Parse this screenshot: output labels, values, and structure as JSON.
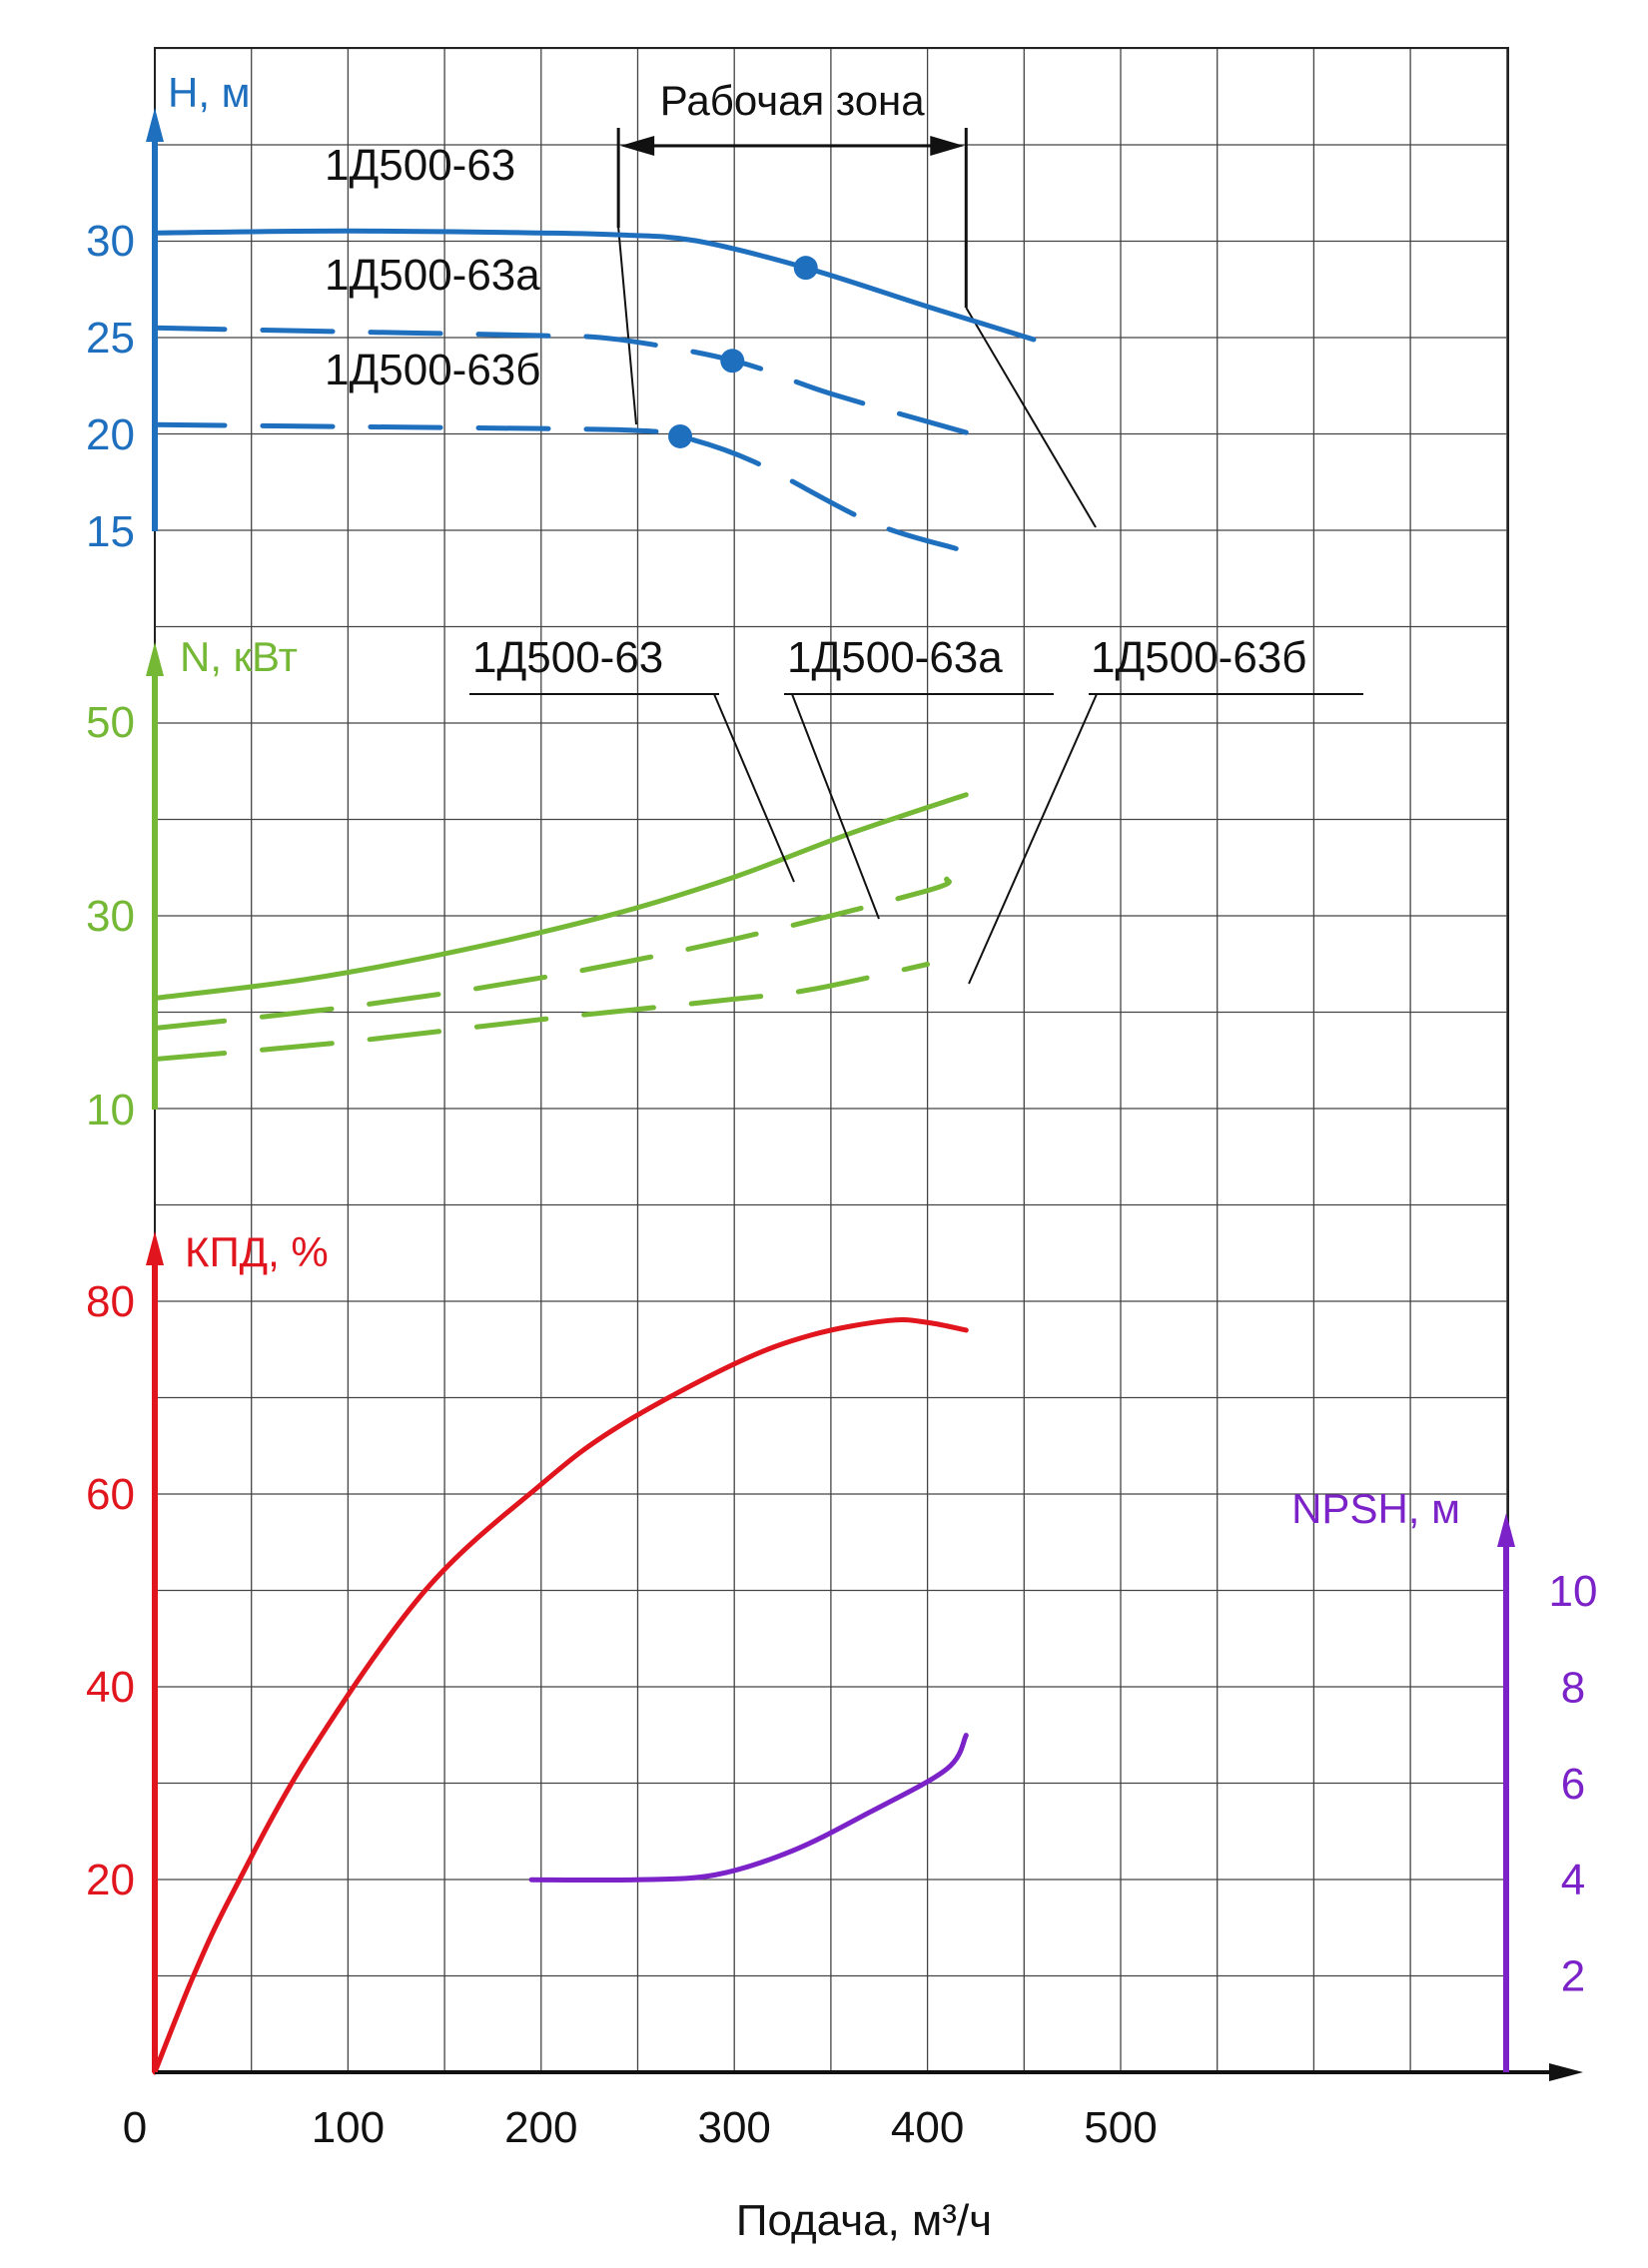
{
  "chart_data": {
    "type": "line",
    "xlabel": "Подача, м³/ч",
    "xlim": [
      0,
      560
    ],
    "xticks": [
      "0",
      "100",
      "200",
      "300",
      "400",
      "500"
    ],
    "work_zone": {
      "label": "Рабочая зона",
      "x_range": [
        240,
        420
      ]
    },
    "panels": [
      {
        "id": "head",
        "ylabel": "H, м",
        "color": "#1f6fbf",
        "ylim": [
          15,
          35
        ],
        "yticks": [
          "15",
          "20",
          "25",
          "30"
        ],
        "series": [
          {
            "name": "1Д500-63",
            "style": "solid",
            "points": [
              [
                0,
                30.4
              ],
              [
                100,
                30.5
              ],
              [
                200,
                30.4
              ],
              [
                240,
                30.3
              ],
              [
                280,
                30
              ],
              [
                337,
                28.6
              ],
              [
                400,
                26.6
              ],
              [
                455,
                24.9
              ]
            ],
            "duty_point": [
              337,
              28.6
            ]
          },
          {
            "name": "1Д500-63а",
            "style": "dashed",
            "points": [
              [
                0,
                25.5
              ],
              [
                100,
                25.3
              ],
              [
                200,
                25.1
              ],
              [
                240,
                24.9
              ],
              [
                300,
                23.8
              ],
              [
                350,
                22.1
              ],
              [
                420,
                20.1
              ]
            ],
            "duty_point": [
              299,
              23.8
            ]
          },
          {
            "name": "1Д500-63б",
            "style": "dashed",
            "points": [
              [
                0,
                20.5
              ],
              [
                100,
                20.4
              ],
              [
                200,
                20.3
              ],
              [
                250,
                20.2
              ],
              [
                272,
                19.9
              ],
              [
                310,
                18.6
              ],
              [
                370,
                15.5
              ],
              [
                415,
                14.1
              ]
            ],
            "duty_point": [
              272,
              19.9
            ]
          }
        ],
        "labels": [
          {
            "text": "1Д500-63",
            "series": 0
          },
          {
            "text": "1Д500-63а",
            "series": 1
          },
          {
            "text": "1Д500-63б",
            "series": 2
          }
        ]
      },
      {
        "id": "power",
        "ylabel": "N, кВт",
        "color": "#74b836",
        "ylim": [
          10,
          55
        ],
        "yticks": [
          "10",
          "30",
          "50"
        ],
        "series": [
          {
            "name": "1Д500-63",
            "style": "solid",
            "points": [
              [
                0,
                21.5
              ],
              [
                80,
                23.5
              ],
              [
                160,
                26.5
              ],
              [
                240,
                30.3
              ],
              [
                300,
                34
              ],
              [
                360,
                38.5
              ],
              [
                420,
                42.5
              ]
            ]
          },
          {
            "name": "1Д500-63а",
            "style": "dashed",
            "points": [
              [
                0,
                18.4
              ],
              [
                100,
                20.6
              ],
              [
                200,
                23.6
              ],
              [
                300,
                27.6
              ],
              [
                400,
                32.6
              ],
              [
                410,
                33.8
              ]
            ]
          },
          {
            "name": "1Д500-63б",
            "style": "dashed",
            "points": [
              [
                0,
                15.2
              ],
              [
                100,
                17
              ],
              [
                200,
                19.3
              ],
              [
                300,
                21.4
              ],
              [
                340,
                22.4
              ],
              [
                400,
                25
              ]
            ]
          }
        ],
        "labels": [
          {
            "text": "1Д500-63",
            "series": 0
          },
          {
            "text": "1Д500-63а",
            "series": 1
          },
          {
            "text": "1Д500-63б",
            "series": 2
          }
        ]
      },
      {
        "id": "efficiency",
        "ylabel": "КПД, %",
        "color": "#e0151d",
        "ylim": [
          0,
          80
        ],
        "yticks": [
          "20",
          "40",
          "60",
          "80"
        ],
        "series": [
          {
            "name": "КПД",
            "style": "solid",
            "points": [
              [
                0,
                0
              ],
              [
                20,
                10
              ],
              [
                40,
                18.5
              ],
              [
                80,
                33
              ],
              [
                140,
                50
              ],
              [
                200,
                61
              ],
              [
                240,
                67
              ],
              [
                300,
                73.5
              ],
              [
                340,
                76.5
              ],
              [
                380,
                78
              ],
              [
                400,
                77.8
              ],
              [
                420,
                77
              ]
            ]
          }
        ]
      },
      {
        "id": "npsh",
        "ylabel": "NPSH, м",
        "color": "#7b22c8",
        "ylim": [
          0,
          11
        ],
        "yticks": [
          "2",
          "4",
          "6",
          "8",
          "10"
        ],
        "series": [
          {
            "name": "NPSH",
            "style": "solid",
            "points": [
              [
                195,
                4
              ],
              [
                250,
                4
              ],
              [
                290,
                4.1
              ],
              [
                330,
                4.6
              ],
              [
                370,
                5.4
              ],
              [
                410,
                6.3
              ],
              [
                420,
                7
              ]
            ]
          }
        ]
      }
    ]
  }
}
